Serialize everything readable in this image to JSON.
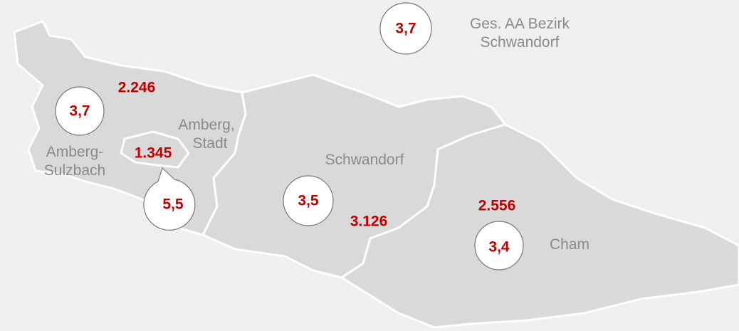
{
  "total": {
    "rate": "3,7",
    "label": [
      "Ges. AA Bezirk",
      "Schwandorf"
    ]
  },
  "regions": [
    {
      "name": [
        "Amberg-",
        "Sulzbach"
      ],
      "rate": "3,7",
      "count": "2.246"
    },
    {
      "name": [
        "Amberg,",
        "Stadt"
      ],
      "rate": "5,5",
      "count": "1.345"
    },
    {
      "name": [
        "Schwandorf"
      ],
      "rate": "3,5",
      "count": "3.126"
    },
    {
      "name": [
        "Cham"
      ],
      "rate": "3,4",
      "count": "2.556"
    }
  ]
}
